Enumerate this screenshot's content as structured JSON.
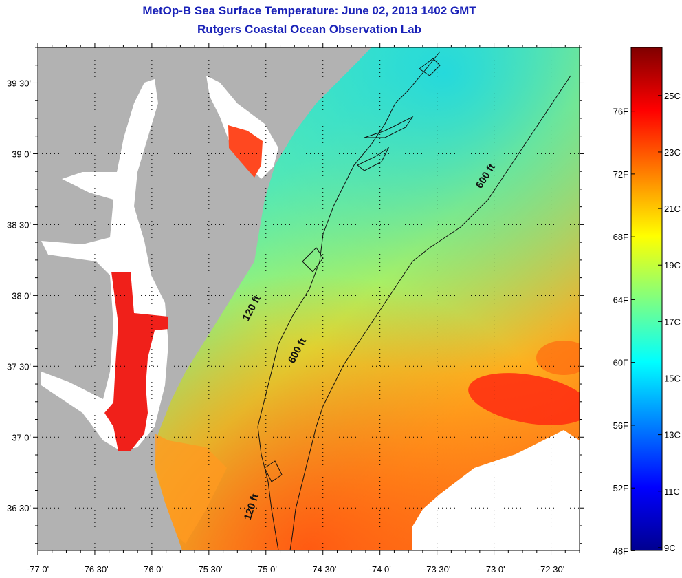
{
  "title": "MetOp-B Sea Surface Temperature:  June 02, 2013 1402 GMT",
  "subtitle": "Rutgers Coastal Ocean Observation Lab",
  "map": {
    "lon_range": [
      -77.0,
      -72.25
    ],
    "lat_range": [
      36.2,
      39.75
    ],
    "lon_ticks": [
      {
        "value": -77.0,
        "label": "-77 0'"
      },
      {
        "value": -76.5,
        "label": "-76 30'"
      },
      {
        "value": -76.0,
        "label": "-76 0'"
      },
      {
        "value": -75.5,
        "label": "-75 30'"
      },
      {
        "value": -75.0,
        "label": "-75 0'"
      },
      {
        "value": -74.5,
        "label": "-74 30'"
      },
      {
        "value": -74.0,
        "label": "-74 0'"
      },
      {
        "value": -73.5,
        "label": "-73 30'"
      },
      {
        "value": -73.0,
        "label": "-73 0'"
      },
      {
        "value": -72.5,
        "label": "-72 30'"
      }
    ],
    "lat_ticks": [
      {
        "value": 39.5,
        "label": "39 30'"
      },
      {
        "value": 39.0,
        "label": "39 0'"
      },
      {
        "value": 38.5,
        "label": "38 30'"
      },
      {
        "value": 38.0,
        "label": "38 0'"
      },
      {
        "value": 37.5,
        "label": "37 30'"
      },
      {
        "value": 37.0,
        "label": "37 0'"
      },
      {
        "value": 36.5,
        "label": "36 30'"
      }
    ],
    "contour_labels": [
      {
        "text": "120 ft",
        "lon": -75.1,
        "lat": 37.9,
        "rotate": -62
      },
      {
        "text": "600 ft",
        "lon": -74.7,
        "lat": 37.6,
        "rotate": -62
      },
      {
        "text": "600 ft",
        "lon": -73.05,
        "lat": 38.83,
        "rotate": -58
      },
      {
        "text": "120 ft",
        "lon": -75.1,
        "lat": 36.5,
        "rotate": -72
      }
    ],
    "colors": {
      "land": "#b2b2b2",
      "nodata": "#ffffff",
      "contour": "#101010",
      "grid": "#000000"
    }
  },
  "colorbar": {
    "f_ticks": [
      {
        "value": 76,
        "label": "76F"
      },
      {
        "value": 72,
        "label": "72F"
      },
      {
        "value": 68,
        "label": "68F"
      },
      {
        "value": 64,
        "label": "64F"
      },
      {
        "value": 60,
        "label": "60F"
      },
      {
        "value": 56,
        "label": "56F"
      },
      {
        "value": 52,
        "label": "52F"
      },
      {
        "value": 48,
        "label": "48F"
      }
    ],
    "c_ticks": [
      {
        "value": 25,
        "label": "25C"
      },
      {
        "value": 23,
        "label": "23C"
      },
      {
        "value": 21,
        "label": "21C"
      },
      {
        "value": 19,
        "label": "19C"
      },
      {
        "value": 17,
        "label": "17C"
      },
      {
        "value": 15,
        "label": "15C"
      },
      {
        "value": 13,
        "label": "13C"
      },
      {
        "value": 11,
        "label": "11C"
      },
      {
        "value": 9,
        "label": "9C"
      }
    ],
    "range_c": [
      8.9,
      26.7
    ],
    "stops": [
      "#00008f",
      "#0000ff",
      "#0080ff",
      "#00ffff",
      "#80ff80",
      "#ffff00",
      "#ff8000",
      "#ff0000",
      "#800000"
    ]
  }
}
